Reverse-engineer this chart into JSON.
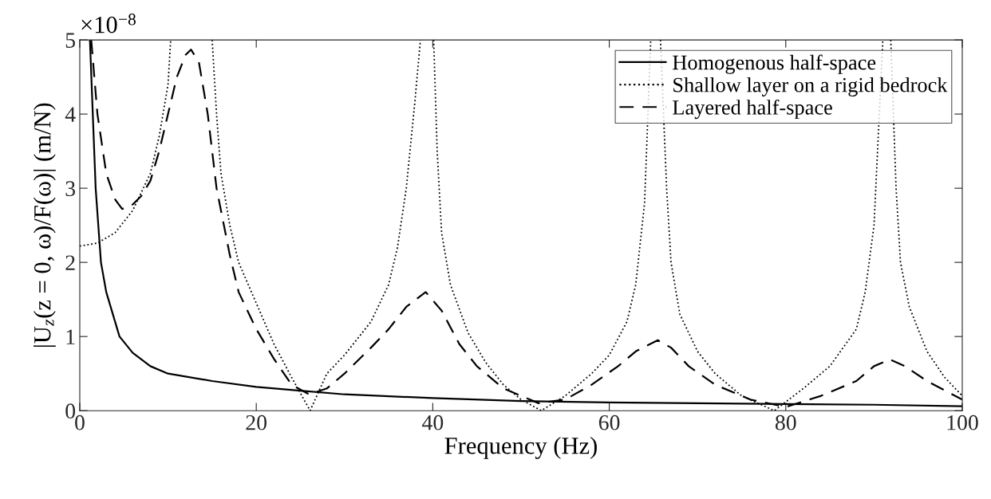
{
  "chart_data": {
    "type": "line",
    "xlabel": "Frequency (Hz)",
    "ylabel": "|U$_{z}$(z = 0, ω)/F(ω)| (m/N)",
    "annotations": [
      "×10$^{−8}$"
    ],
    "xlim": [
      0,
      100
    ],
    "xticks": [
      0,
      20,
      40,
      60,
      80,
      100
    ],
    "ylim": [
      0,
      5
    ],
    "yticks": [
      0,
      1,
      2,
      3,
      4,
      5
    ],
    "grid": false,
    "legend": "top right",
    "marker": "none",
    "series": [
      {
        "name": "Homogenous half-space",
        "color": "#000000",
        "line_style": "solid",
        "x": [
          1.15,
          1.8,
          2.4,
          3,
          4.5,
          6,
          8,
          10,
          15,
          20,
          25,
          30,
          40,
          50,
          60,
          70,
          80,
          90,
          100
        ],
        "values": [
          5,
          3,
          2,
          1.6,
          1.0,
          0.78,
          0.6,
          0.5,
          0.4,
          0.32,
          0.27,
          0.22,
          0.17,
          0.13,
          0.11,
          0.1,
          0.09,
          0.08,
          0.06
        ]
      },
      {
        "name": "Shallow layer on a rigid bedrock",
        "color": "#000000",
        "line_style": "dotted",
        "x": [
          0,
          2,
          4,
          6,
          8,
          9,
          10,
          10.3,
          12.5,
          15.0,
          15.5,
          16,
          17,
          18,
          20,
          22,
          24,
          26.1,
          28,
          30,
          33,
          35,
          36,
          37,
          38,
          38.6,
          39.3,
          40.1,
          40.5,
          41,
          42,
          44,
          46,
          48,
          50,
          52.3,
          55,
          58,
          60,
          62,
          63,
          64,
          64.7,
          65.2,
          65.8,
          66.5,
          67,
          68,
          70,
          72,
          75,
          78.7,
          82,
          85,
          88,
          89,
          90,
          91.0,
          91.4,
          91.9,
          92.5,
          93,
          94,
          96,
          98,
          100
        ],
        "values": [
          2.22,
          2.26,
          2.4,
          2.7,
          3.2,
          3.7,
          4.4,
          5,
          null,
          5,
          4.0,
          3.2,
          2.5,
          2.0,
          1.45,
          0.9,
          0.45,
          0.0,
          0.5,
          0.75,
          1.2,
          1.7,
          2.2,
          3.0,
          4.2,
          5,
          null,
          5,
          3.5,
          2.4,
          1.7,
          1.05,
          0.65,
          0.35,
          0.15,
          0.0,
          0.2,
          0.5,
          0.75,
          1.2,
          1.7,
          2.8,
          5,
          null,
          5,
          3,
          2.0,
          1.3,
          0.8,
          0.5,
          0.2,
          0.0,
          0.3,
          0.6,
          1.1,
          1.6,
          2.5,
          5,
          null,
          5,
          3,
          2.0,
          1.4,
          0.8,
          0.45,
          0.2
        ]
      },
      {
        "name": "Layered half-space",
        "color": "#000000",
        "line_style": "dashed",
        "x": [
          1.3,
          2,
          3,
          4,
          4.8,
          6,
          7,
          8,
          9,
          10,
          11,
          12,
          12.6,
          13.5,
          14.5,
          15.5,
          17,
          18,
          20,
          22,
          24,
          26,
          28,
          30,
          33,
          35,
          37,
          39.2,
          41,
          43,
          45,
          48,
          52,
          55,
          58,
          61,
          63,
          65.5,
          67,
          69,
          72,
          76,
          80,
          84,
          88,
          90,
          91.8,
          93.5,
          96,
          100
        ],
        "values": [
          5,
          4.0,
          3.2,
          2.85,
          2.72,
          2.78,
          2.9,
          3.1,
          3.5,
          4.0,
          4.5,
          4.8,
          4.87,
          4.7,
          4.0,
          3.0,
          2.1,
          1.6,
          1.1,
          0.7,
          0.35,
          0.22,
          0.3,
          0.5,
          0.85,
          1.1,
          1.4,
          1.6,
          1.35,
          0.9,
          0.6,
          0.3,
          0.1,
          0.15,
          0.35,
          0.6,
          0.8,
          0.95,
          0.85,
          0.6,
          0.35,
          0.15,
          0.05,
          0.2,
          0.4,
          0.6,
          0.69,
          0.6,
          0.4,
          0.15
        ]
      }
    ]
  }
}
